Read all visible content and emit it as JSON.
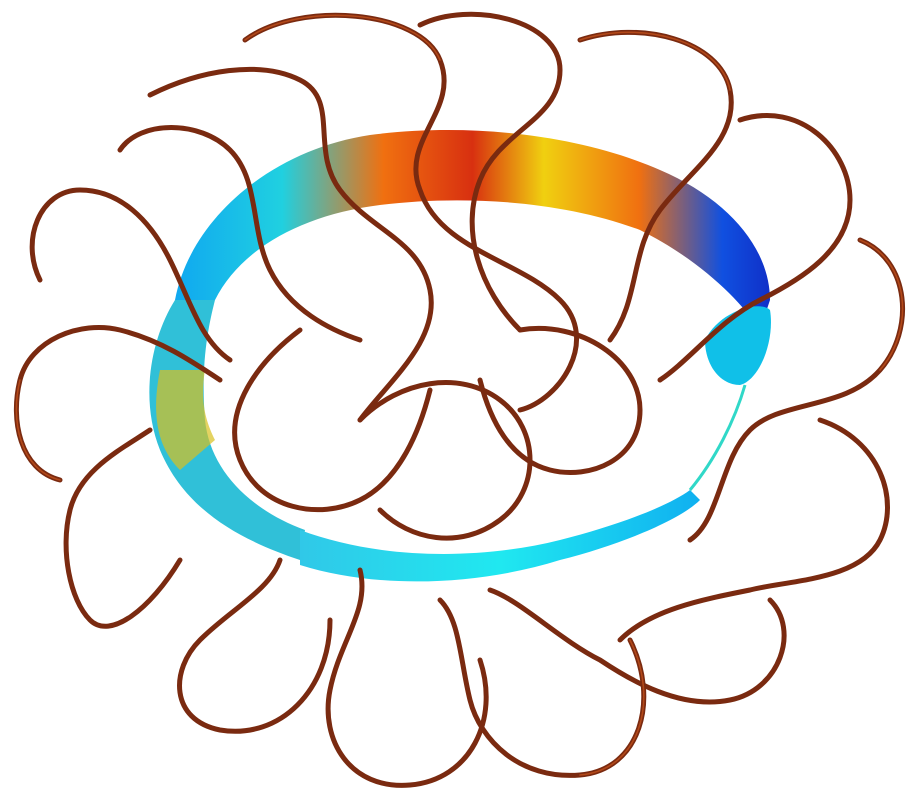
{
  "scene": {
    "background": "#ffffff",
    "coil_color": "#7a2a10",
    "coil_highlight": "#c0501c",
    "plasma_gradient": [
      "#1030c8",
      "#10a8f0",
      "#20e0e8",
      "#e8e010",
      "#f08010",
      "#d83010"
    ]
  }
}
